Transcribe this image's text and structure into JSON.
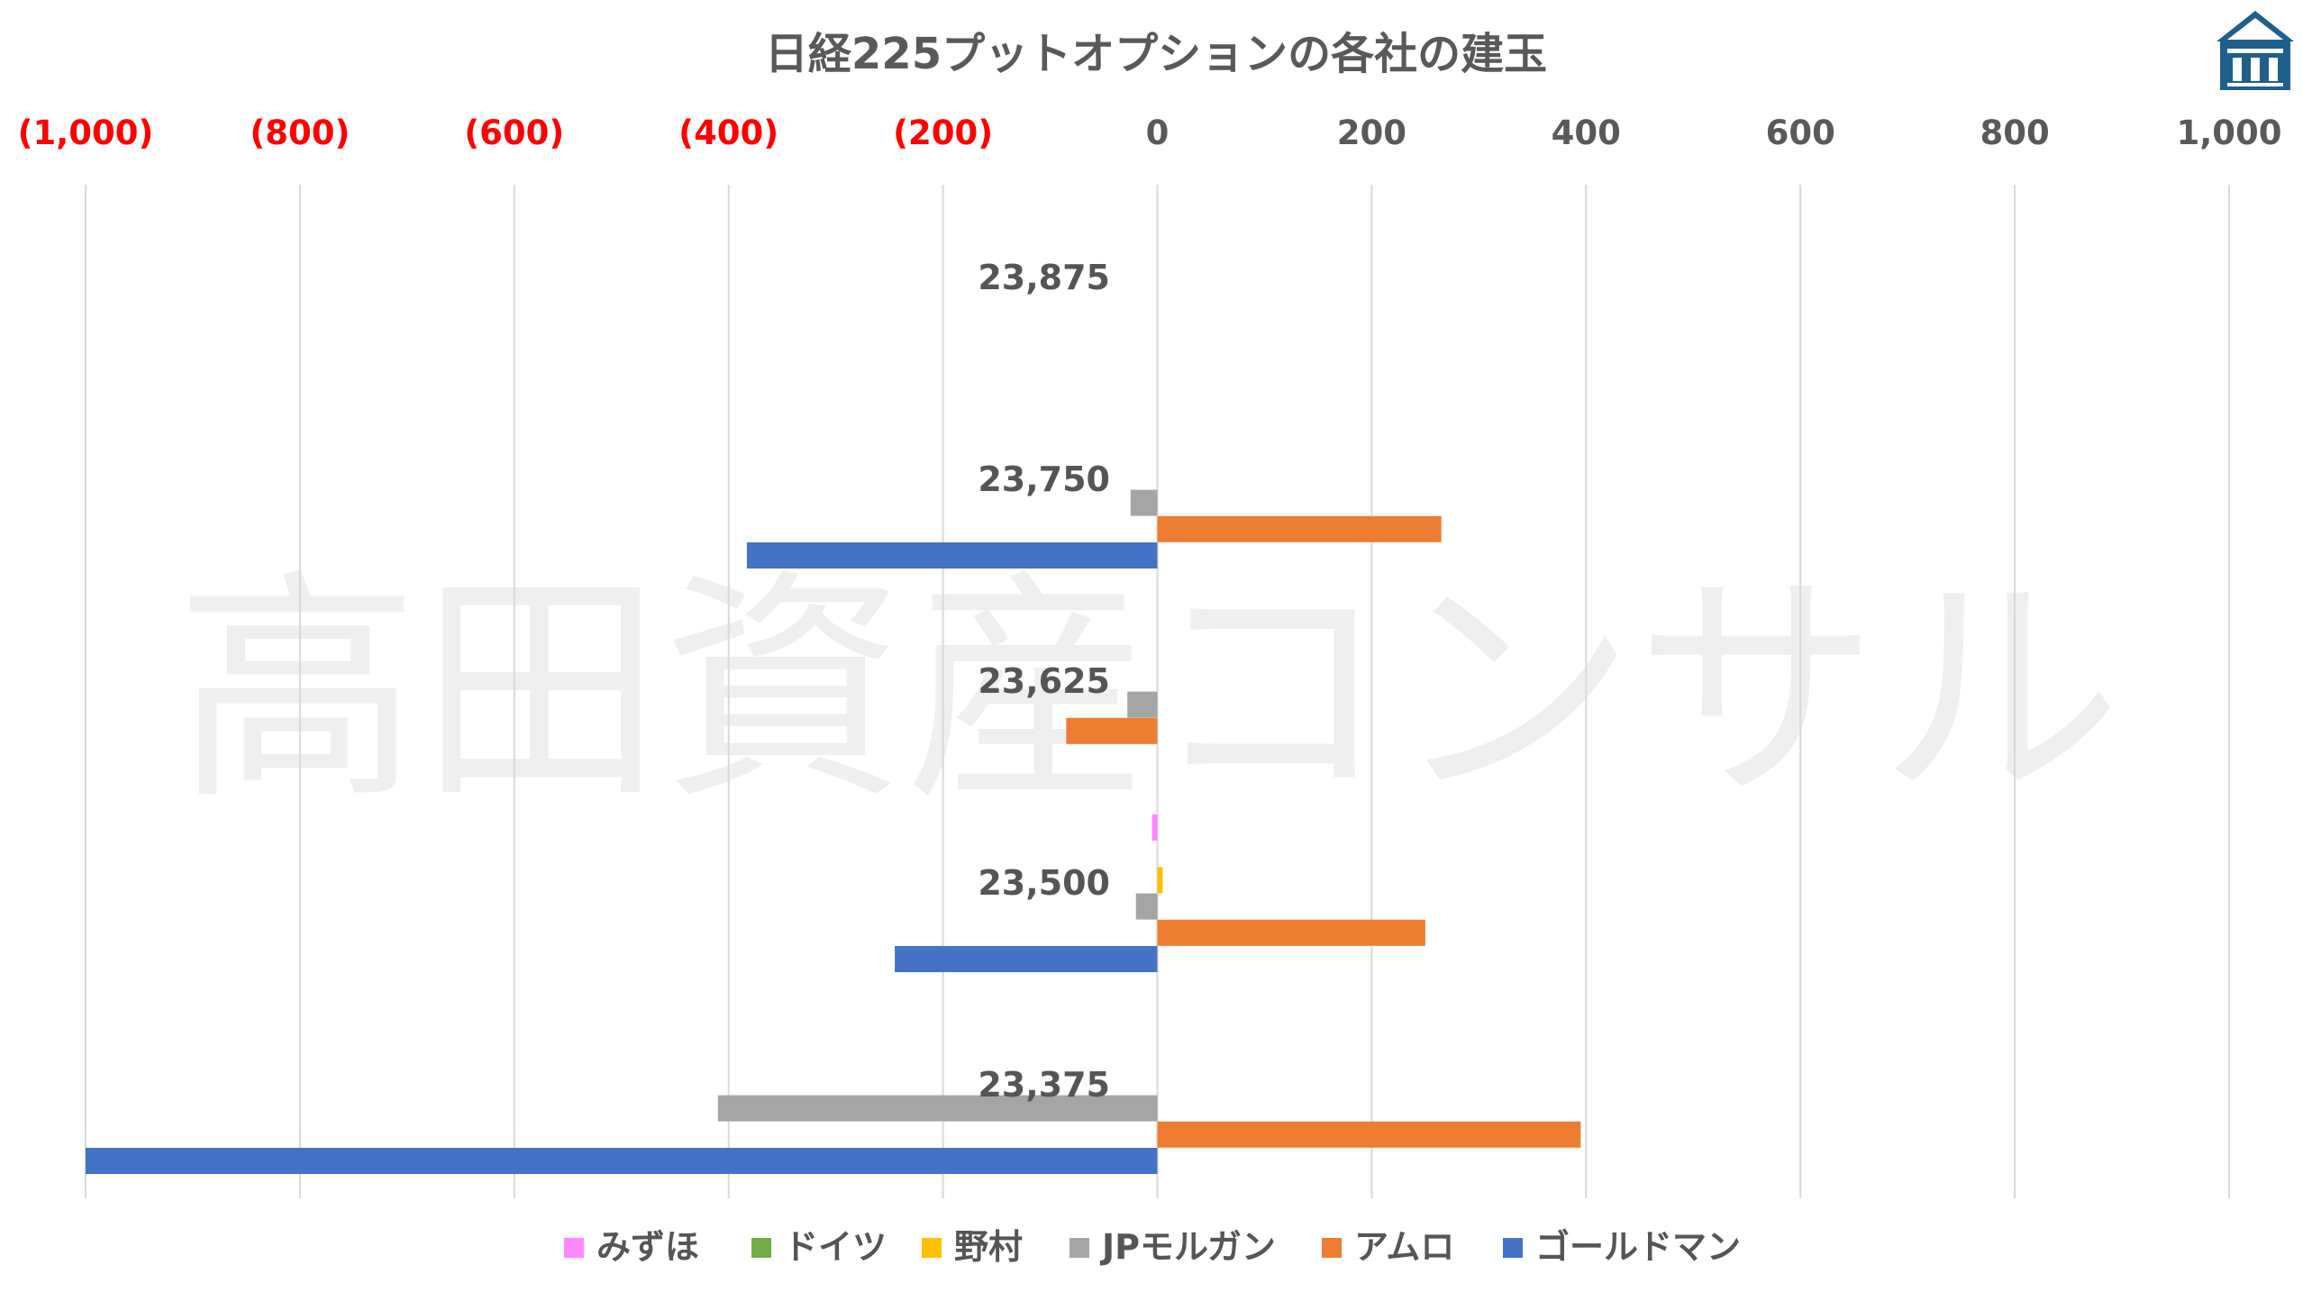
{
  "chart_data": {
    "type": "bar",
    "orientation": "horizontal",
    "title": "日経225プットオプションの各社の建玉",
    "watermark": "高田資産コンサル",
    "categories": [
      "23,875",
      "23,750",
      "23,625",
      "23,500",
      "23,375"
    ],
    "xlim": [
      -1000,
      1000
    ],
    "x_ticks": [
      {
        "value": -1000,
        "label": "(1,000)",
        "color": "#ff0000"
      },
      {
        "value": -800,
        "label": "(800)",
        "color": "#ff0000"
      },
      {
        "value": -600,
        "label": "(600)",
        "color": "#ff0000"
      },
      {
        "value": -400,
        "label": "(400)",
        "color": "#ff0000"
      },
      {
        "value": -200,
        "label": "(200)",
        "color": "#ff0000"
      },
      {
        "value": 0,
        "label": "0",
        "color": "#595959"
      },
      {
        "value": 200,
        "label": "200",
        "color": "#595959"
      },
      {
        "value": 400,
        "label": "400",
        "color": "#595959"
      },
      {
        "value": 600,
        "label": "600",
        "color": "#595959"
      },
      {
        "value": 800,
        "label": "800",
        "color": "#595959"
      },
      {
        "value": 1000,
        "label": "1,000",
        "color": "#595959"
      }
    ],
    "grid": true,
    "legend_position": "bottom",
    "series": [
      {
        "name": "みずほ",
        "color": "#ff88ff",
        "values": [
          0,
          0,
          0,
          -5,
          0
        ]
      },
      {
        "name": "ドイツ",
        "color": "#70ad47",
        "values": [
          0,
          0,
          0,
          0,
          0
        ]
      },
      {
        "name": "野村",
        "color": "#ffc000",
        "values": [
          0,
          0,
          0,
          5,
          0
        ]
      },
      {
        "name": "JPモルガン",
        "color": "#a5a5a5",
        "values": [
          0,
          -25,
          -28,
          -20,
          -410
        ]
      },
      {
        "name": "アムロ",
        "color": "#ed7d31",
        "values": [
          0,
          265,
          -85,
          250,
          395
        ]
      },
      {
        "name": "ゴールドマン",
        "color": "#4472c4",
        "values": [
          0,
          -383,
          0,
          -245,
          -1000
        ]
      }
    ]
  },
  "logo": {
    "name": "building-logo-icon",
    "color": "#1f5f8b"
  }
}
